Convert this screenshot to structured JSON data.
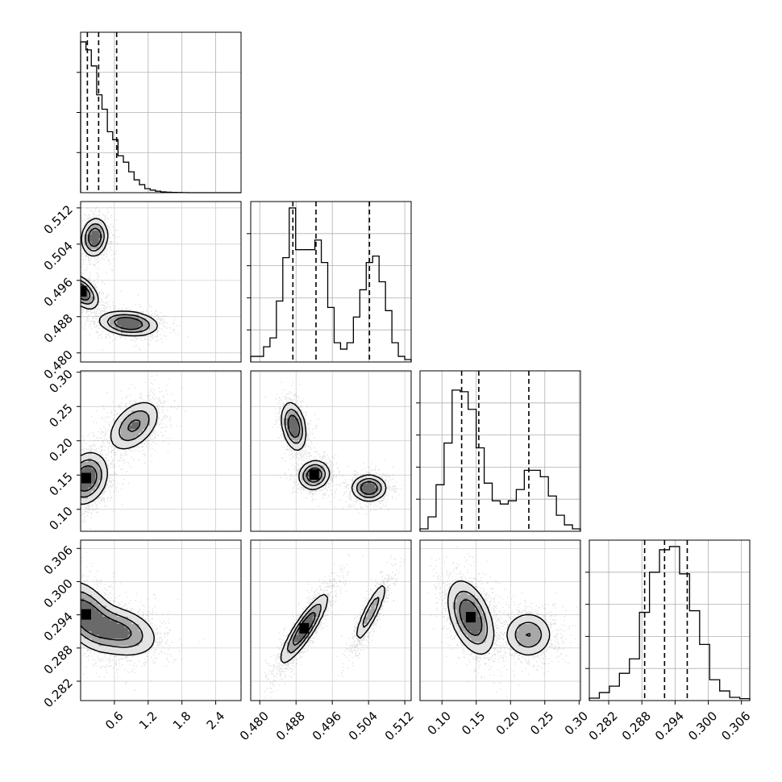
{
  "figure": {
    "type": "corner-plot"
  },
  "chart_data": {
    "type": "corner",
    "parameters": [
      {
        "label": "",
        "range": [
          0,
          2.85
        ],
        "tick_labels": [
          "0.6",
          "1.2",
          "1.8",
          "2.4"
        ],
        "quantile_lines": [
          0.12,
          0.32,
          0.64
        ],
        "histogram": [
          0.94,
          0.89,
          0.79,
          0.61,
          0.52,
          0.38,
          0.33,
          0.23,
          0.19,
          0.13,
          0.08,
          0.05,
          0.025,
          0.016,
          0.009,
          0.005,
          0.003,
          0.002,
          0.001,
          0.0006,
          0,
          0,
          0,
          0,
          0,
          0,
          0,
          0,
          0,
          0
        ],
        "y_tick_rows": 3
      },
      {
        "label": "",
        "range": [
          0.478,
          0.5134
        ],
        "tick_labels": [
          "0.480",
          "0.488",
          "0.496",
          "0.504",
          "0.512"
        ],
        "quantile_lines": [
          0.4873,
          0.4924,
          0.5042
        ],
        "histogram": [
          0.035,
          0.035,
          0.095,
          0.15,
          0.38,
          0.65,
          0.96,
          0.7,
          0.7,
          0.7,
          0.76,
          0.62,
          0.34,
          0.12,
          0.08,
          0.12,
          0.28,
          0.45,
          0.62,
          0.66,
          0.5,
          0.32,
          0.12,
          0.035,
          0.015
        ],
        "y_tick_rows": 4
      },
      {
        "label": "",
        "range": [
          0.068,
          0.302
        ],
        "tick_labels": [
          "0.10",
          "0.15",
          "0.20",
          "0.25",
          "0.30"
        ],
        "quantile_lines": [
          0.1287,
          0.1537,
          0.2267
        ],
        "histogram": [
          0.015,
          0.09,
          0.29,
          0.55,
          0.88,
          0.87,
          0.76,
          0.52,
          0.3,
          0.19,
          0.17,
          0.19,
          0.26,
          0.38,
          0.38,
          0.34,
          0.22,
          0.1,
          0.04,
          0.015
        ],
        "y_tick_rows": 4
      },
      {
        "label": "",
        "range": [
          0.2785,
          0.3075
        ],
        "tick_labels": [
          "0.282",
          "0.288",
          "0.294",
          "0.300",
          "0.306"
        ],
        "quantile_lines": [
          0.2885,
          0.2921,
          0.2962
        ],
        "histogram": [
          0.015,
          0.05,
          0.09,
          0.17,
          0.26,
          0.55,
          0.8,
          0.94,
          0.96,
          0.79,
          0.56,
          0.35,
          0.13,
          0.06,
          0.02,
          0.012
        ],
        "y_tick_rows": 4
      }
    ],
    "pairs": [
      {
        "x": 0,
        "y": 1,
        "modes": [
          {
            "cx": 0.25,
            "cy": 0.5055,
            "sx": 0.11,
            "sy": 0.002,
            "rho": 0.1,
            "w": 0.33
          },
          {
            "cx": 0.02,
            "cy": 0.4935,
            "sx": 0.14,
            "sy": 0.0018,
            "rho": -0.5,
            "w": 0.34
          },
          {
            "cx": 0.85,
            "cy": 0.4865,
            "sx": 0.25,
            "sy": 0.0013,
            "rho": -0.2,
            "w": 0.33
          }
        ]
      },
      {
        "x": 0,
        "y": 2,
        "modes": [
          {
            "cx": 0.1,
            "cy": 0.145,
            "sx": 0.18,
            "sy": 0.018,
            "rho": 0.2,
            "w": 0.6
          },
          {
            "cx": 0.95,
            "cy": 0.222,
            "sx": 0.22,
            "sy": 0.018,
            "rho": 0.45,
            "w": 0.4
          }
        ]
      },
      {
        "x": 0,
        "y": 3,
        "modes": [
          {
            "cx": 0.1,
            "cy": 0.294,
            "sx": 0.26,
            "sy": 0.003,
            "rho": -0.45,
            "w": 0.55
          },
          {
            "cx": 0.7,
            "cy": 0.291,
            "sx": 0.32,
            "sy": 0.0022,
            "rho": -0.3,
            "w": 0.45
          }
        ]
      },
      {
        "x": 1,
        "y": 2,
        "modes": [
          {
            "cx": 0.4875,
            "cy": 0.221,
            "sx": 0.0013,
            "sy": 0.017,
            "rho": -0.3,
            "w": 0.32
          },
          {
            "cx": 0.492,
            "cy": 0.15,
            "sx": 0.0016,
            "sy": 0.01,
            "rho": 0.1,
            "w": 0.34
          },
          {
            "cx": 0.5041,
            "cy": 0.131,
            "sx": 0.0018,
            "sy": 0.009,
            "rho": 0.0,
            "w": 0.34
          }
        ]
      },
      {
        "x": 1,
        "y": 3,
        "modes": [
          {
            "cx": 0.4898,
            "cy": 0.2915,
            "sx": 0.0025,
            "sy": 0.003,
            "rho": 0.88,
            "w": 0.65
          },
          {
            "cx": 0.5045,
            "cy": 0.2945,
            "sx": 0.0018,
            "sy": 0.0028,
            "rho": 0.88,
            "w": 0.35
          }
        ]
      },
      {
        "x": 2,
        "y": 3,
        "modes": [
          {
            "cx": 0.142,
            "cy": 0.2935,
            "sx": 0.016,
            "sy": 0.0032,
            "rho": -0.45,
            "w": 0.62
          },
          {
            "cx": 0.226,
            "cy": 0.2904,
            "sx": 0.017,
            "sy": 0.002,
            "rho": 0.0,
            "w": 0.38
          }
        ]
      }
    ],
    "contour_levels": [
      0.12,
      0.33,
      0.6
    ],
    "grid": true
  }
}
